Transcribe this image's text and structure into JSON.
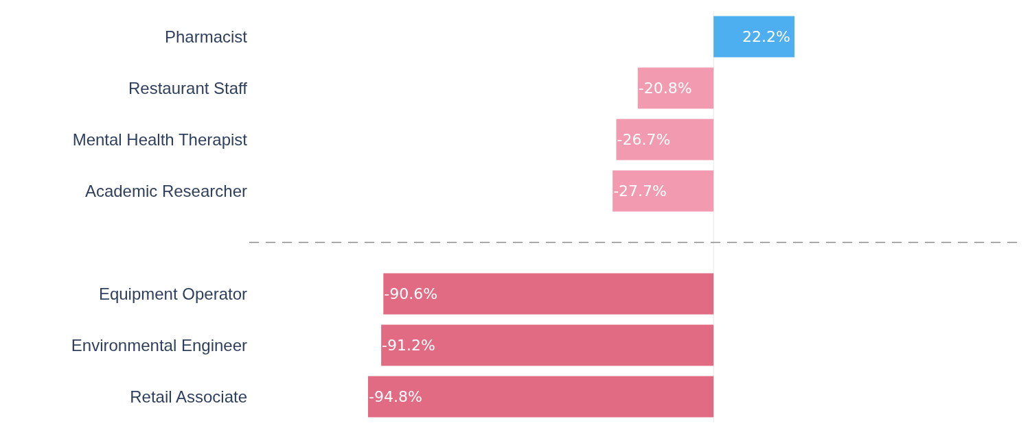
{
  "chart_data": {
    "type": "bar",
    "orientation": "horizontal",
    "categories": [
      "Pharmacist",
      "Restaurant Staff",
      "Mental Health Therapist",
      "Academic Researcher",
      null,
      "Equipment Operator",
      "Environmental Engineer",
      "Retail Associate"
    ],
    "values": [
      22.2,
      -20.8,
      -26.7,
      -27.7,
      null,
      -90.6,
      -91.2,
      -94.8
    ],
    "value_labels": [
      "22.2%",
      "-20.8%",
      "-26.7%",
      "-27.7%",
      null,
      "-90.6%",
      "-91.2%",
      "-94.8%"
    ],
    "colors": [
      "#4daef0",
      "#f29bb0",
      "#f29bb0",
      "#f29bb0",
      null,
      "#e26b84",
      "#e26b84",
      "#e26b84"
    ]
  }
}
